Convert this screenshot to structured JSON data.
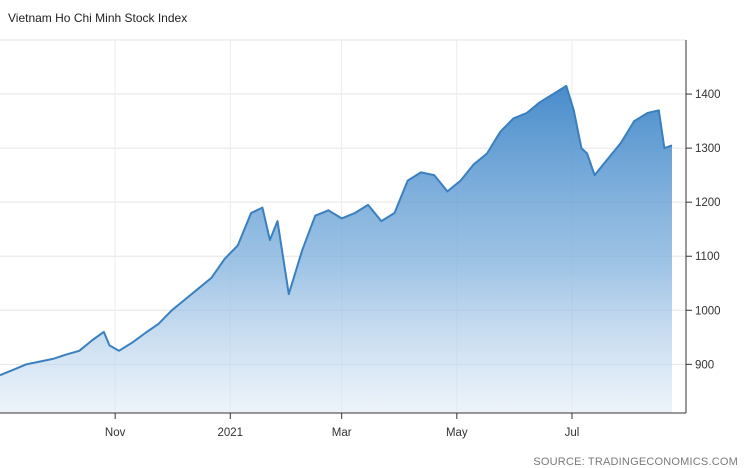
{
  "chart_data": {
    "type": "area",
    "title": "Vietnam Ho Chi Minh Stock Index",
    "source": "SOURCE: TRADINGECONOMICS.COM",
    "xlabel": "",
    "ylabel": "",
    "x_tick_labels": [
      "Nov",
      "2021",
      "Mar",
      "May",
      "Jul"
    ],
    "y_tick_labels": [
      "900",
      "1000",
      "1100",
      "1200",
      "1300",
      "1400"
    ],
    "ylim": [
      810,
      1500
    ],
    "grid": true,
    "color": "#3f86c8",
    "series": [
      {
        "x": [
          "2020-09-01",
          "2020-09-08",
          "2020-09-15",
          "2020-09-22",
          "2020-09-29",
          "2020-10-06",
          "2020-10-13",
          "2020-10-20",
          "2020-10-26",
          "2020-10-29",
          "2020-11-03",
          "2020-11-10",
          "2020-11-17",
          "2020-11-24",
          "2020-12-01",
          "2020-12-08",
          "2020-12-15",
          "2020-12-22",
          "2020-12-29",
          "2021-01-05",
          "2021-01-12",
          "2021-01-18",
          "2021-01-22",
          "2021-01-26",
          "2021-02-01",
          "2021-02-08",
          "2021-02-15",
          "2021-02-22",
          "2021-03-01",
          "2021-03-08",
          "2021-03-15",
          "2021-03-22",
          "2021-03-29",
          "2021-04-05",
          "2021-04-12",
          "2021-04-19",
          "2021-04-26",
          "2021-05-03",
          "2021-05-10",
          "2021-05-17",
          "2021-05-24",
          "2021-05-31",
          "2021-06-07",
          "2021-06-14",
          "2021-06-21",
          "2021-06-28",
          "2021-07-02",
          "2021-07-06",
          "2021-07-09",
          "2021-07-13",
          "2021-07-20",
          "2021-07-27",
          "2021-08-03",
          "2021-08-10",
          "2021-08-16",
          "2021-08-19",
          "2021-08-23"
        ],
        "values": [
          880,
          890,
          900,
          905,
          910,
          918,
          925,
          945,
          960,
          935,
          925,
          940,
          958,
          975,
          1000,
          1020,
          1040,
          1060,
          1095,
          1120,
          1180,
          1190,
          1130,
          1165,
          1030,
          1110,
          1175,
          1185,
          1170,
          1180,
          1195,
          1165,
          1180,
          1240,
          1255,
          1250,
          1220,
          1240,
          1270,
          1290,
          1330,
          1355,
          1365,
          1385,
          1400,
          1415,
          1370,
          1300,
          1290,
          1250,
          1280,
          1310,
          1350,
          1365,
          1370,
          1300,
          1305
        ]
      }
    ]
  }
}
